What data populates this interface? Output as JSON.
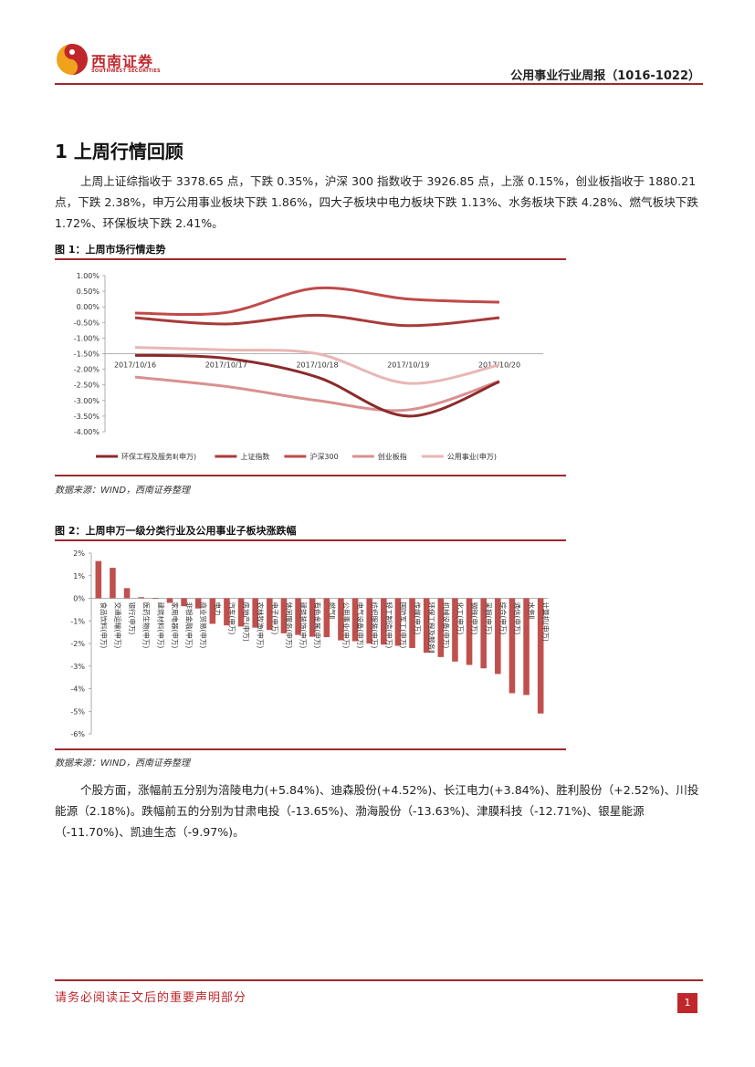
{
  "header": {
    "logo_name": "西南证券",
    "logo_en": "SOUTHWEST SECURITIES",
    "report_title": "公用事业行业周报（1016-1022）"
  },
  "section": {
    "title": "1 上周行情回顾"
  },
  "paragraph1": "上周上证综指收于 3378.65 点，下跌 0.35%，沪深 300 指数收于 3926.85 点，上涨 0.15%，创业板指收于 1880.21 点，下跌 2.38%，申万公用事业板块下跌 1.86%，四大子板块中电力板块下跌 1.13%、水务板块下跌 4.28%、燃气板块下跌 1.72%、环保板块下跌 2.41%。",
  "figure1": {
    "title": "图 1：上周市场行情走势",
    "source": "数据来源：WIND，西南证券整理"
  },
  "figure2": {
    "title": "图 2：上周申万一级分类行业及公用事业子板块涨跌幅",
    "source": "数据来源：WIND，西南证券整理"
  },
  "paragraph2": "个股方面，涨幅前五分别为涪陵电力(+5.84%)、迪森股份(+4.52%)、长江电力(+3.84%)、胜利股份（+2.52%)、川投能源（2.18%)。跌幅前五的分别为甘肃电投（-13.65%)、渤海股份（-13.63%)、津膜科技（-12.71%)、银星能源（-11.70%)、凯迪生态（-9.97%)。",
  "footer": {
    "notice": "请务必阅读正文后的重要声明部分",
    "page": "1"
  },
  "colors": {
    "brand": "#c0272d"
  },
  "chart_data": [
    {
      "type": "line",
      "x": [
        "2017/10/16",
        "2017/10/17",
        "2017/10/18",
        "2017/10/19",
        "2017/10/20"
      ],
      "yticks": [
        "1.00%",
        "0.50%",
        "0.00%",
        "-0.50%",
        "-1.00%",
        "-1.50%",
        "-2.00%",
        "-2.50%",
        "-3.00%",
        "-3.50%",
        "-4.00%"
      ],
      "ylim": [
        -4.0,
        1.0
      ],
      "legend_position": "bottom",
      "series": [
        {
          "name": "环保工程及服务Ⅱ(申万)",
          "color": "#8b2a2a",
          "values": [
            -1.55,
            -1.65,
            -2.25,
            -3.5,
            -2.4
          ]
        },
        {
          "name": "上证指数",
          "color": "#a83a3a",
          "values": [
            -0.35,
            -0.55,
            -0.27,
            -0.6,
            -0.35
          ]
        },
        {
          "name": "沪深300",
          "color": "#c04a4a",
          "values": [
            -0.2,
            -0.18,
            0.6,
            0.25,
            0.15
          ]
        },
        {
          "name": "创业板指",
          "color": "#d99090",
          "values": [
            -2.25,
            -2.55,
            -3.0,
            -3.3,
            -2.38
          ]
        },
        {
          "name": "公用事业(申万)",
          "color": "#e8b6b6",
          "values": [
            -1.3,
            -1.38,
            -1.5,
            -2.45,
            -1.86
          ]
        }
      ]
    },
    {
      "type": "bar",
      "color": "#c0504d",
      "yticks": [
        "2%",
        "1%",
        "0%",
        "-1%",
        "-2%",
        "-3%",
        "-4%",
        "-5%",
        "-6%"
      ],
      "ylim": [
        -6,
        2
      ],
      "categories": [
        "食品饮料(申万)",
        "交通运输(申万)",
        "银行(申万)",
        "医药生物(申万)",
        "建筑材料(申万)",
        "家用电器(申万)",
        "非银金融(申万)",
        "商业贸易(申万)",
        "电力",
        "汽车(申万)",
        "房地产(申万)",
        "农林牧渔(申万)",
        "电子(申万)",
        "休闲服务(申万)",
        "建筑装饰(申万)",
        "有色金属(申万)",
        "燃气Ⅱ",
        "公用事业(申万)",
        "电气设备(申万)",
        "纺织服装(申万)",
        "轻工制造(申万)",
        "国防军工(申万)",
        "传媒(申万)",
        "环保工程及服务Ⅱ",
        "机械设备(申万)",
        "化工(申万)",
        "钢铁(申万)",
        "采掘(申万)",
        "综合(申万)",
        "通信(申万)",
        "水务Ⅱ",
        "计算机(申万)"
      ],
      "values": [
        1.65,
        1.35,
        0.45,
        0.05,
        0.02,
        -0.2,
        -0.35,
        -0.45,
        -1.13,
        -1.2,
        -1.25,
        -1.3,
        -1.4,
        -1.55,
        -1.62,
        -1.7,
        -1.72,
        -1.86,
        -1.9,
        -2.0,
        -2.05,
        -2.1,
        -2.2,
        -2.41,
        -2.6,
        -2.8,
        -2.95,
        -3.1,
        -3.35,
        -4.2,
        -4.28,
        -5.1
      ]
    }
  ]
}
